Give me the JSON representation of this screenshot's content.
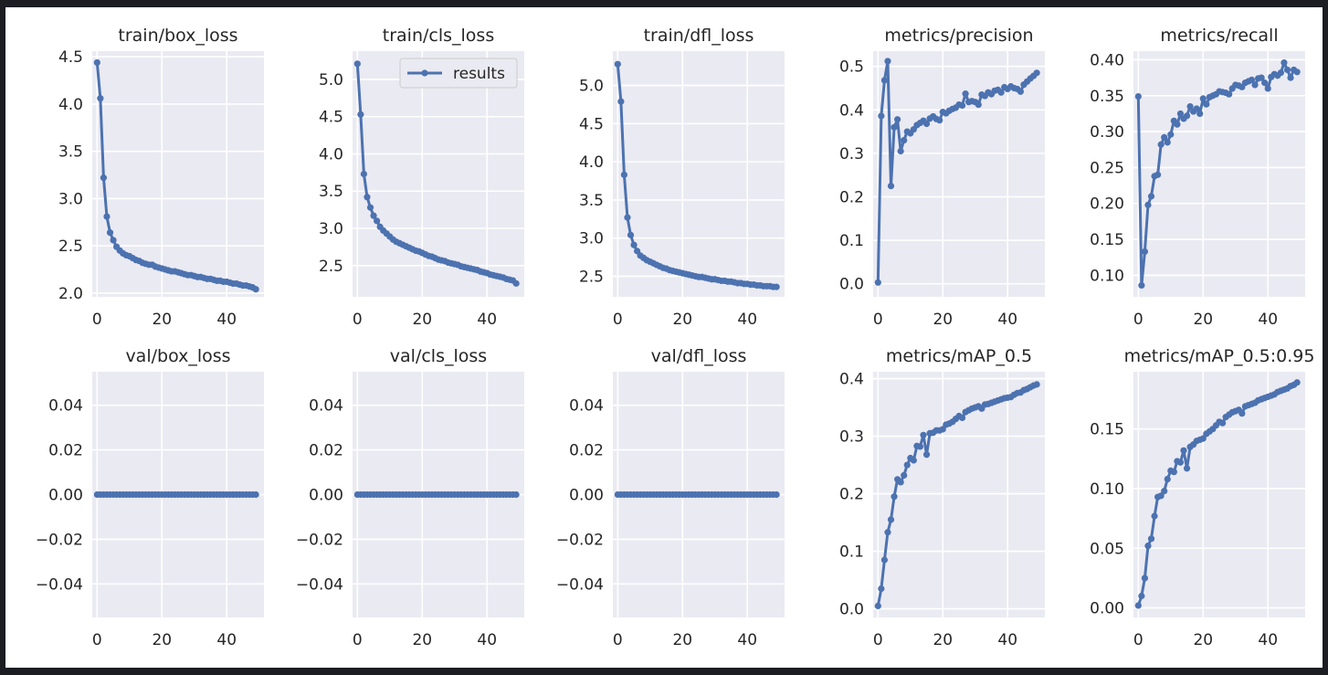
{
  "theme": {
    "background": "#eaeaf2",
    "grid": "#ffffff",
    "line": "#4c72b0",
    "text": "#262626"
  },
  "chart_data": [
    {
      "type": "line",
      "title": "train/box_loss",
      "xlim": [
        -1.5,
        51.5
      ],
      "ylim": [
        1.96,
        4.56
      ],
      "xticks": [
        0,
        20,
        40
      ],
      "yticks": [
        2.0,
        2.5,
        3.0,
        3.5,
        4.0,
        4.5
      ],
      "ydecimals": 1,
      "series": [
        {
          "name": "results",
          "values": [
            4.44,
            4.06,
            3.22,
            2.81,
            2.64,
            2.56,
            2.49,
            2.45,
            2.42,
            2.4,
            2.39,
            2.37,
            2.35,
            2.34,
            2.32,
            2.31,
            2.3,
            2.3,
            2.28,
            2.27,
            2.26,
            2.25,
            2.24,
            2.23,
            2.23,
            2.22,
            2.21,
            2.2,
            2.19,
            2.19,
            2.18,
            2.17,
            2.17,
            2.16,
            2.15,
            2.15,
            2.14,
            2.13,
            2.13,
            2.12,
            2.12,
            2.11,
            2.1,
            2.1,
            2.09,
            2.08,
            2.08,
            2.07,
            2.06,
            2.04
          ]
        }
      ]
    },
    {
      "type": "line",
      "title": "train/cls_loss",
      "xlim": [
        -1.5,
        51.5
      ],
      "ylim": [
        2.08,
        5.38
      ],
      "xticks": [
        0,
        20,
        40
      ],
      "yticks": [
        2.5,
        3.0,
        3.5,
        4.0,
        4.5,
        5.0
      ],
      "ydecimals": 1,
      "legend": {
        "label": "results",
        "placement": "upper right"
      },
      "series": [
        {
          "name": "results",
          "values": [
            5.21,
            4.53,
            3.73,
            3.42,
            3.28,
            3.17,
            3.1,
            3.02,
            2.97,
            2.93,
            2.89,
            2.85,
            2.82,
            2.8,
            2.78,
            2.76,
            2.74,
            2.72,
            2.7,
            2.69,
            2.67,
            2.65,
            2.63,
            2.62,
            2.6,
            2.58,
            2.57,
            2.56,
            2.54,
            2.53,
            2.52,
            2.51,
            2.49,
            2.48,
            2.47,
            2.46,
            2.45,
            2.44,
            2.42,
            2.41,
            2.4,
            2.38,
            2.37,
            2.36,
            2.35,
            2.34,
            2.32,
            2.31,
            2.3,
            2.26
          ]
        }
      ]
    },
    {
      "type": "line",
      "title": "train/dfl_loss",
      "xlim": [
        -1.5,
        51.5
      ],
      "ylim": [
        2.23,
        5.45
      ],
      "xticks": [
        0,
        20,
        40
      ],
      "yticks": [
        2.5,
        3.0,
        3.5,
        4.0,
        4.5,
        5.0
      ],
      "ydecimals": 1,
      "series": [
        {
          "name": "results",
          "values": [
            5.28,
            4.79,
            3.83,
            3.27,
            3.04,
            2.91,
            2.83,
            2.77,
            2.74,
            2.71,
            2.69,
            2.67,
            2.65,
            2.63,
            2.61,
            2.6,
            2.58,
            2.57,
            2.56,
            2.55,
            2.54,
            2.53,
            2.52,
            2.51,
            2.5,
            2.49,
            2.49,
            2.48,
            2.47,
            2.46,
            2.46,
            2.45,
            2.44,
            2.44,
            2.43,
            2.43,
            2.42,
            2.41,
            2.41,
            2.4,
            2.4,
            2.39,
            2.39,
            2.38,
            2.38,
            2.37,
            2.37,
            2.37,
            2.36,
            2.36
          ]
        }
      ]
    },
    {
      "type": "line",
      "title": "metrics/precision",
      "xlim": [
        -1.5,
        51.5
      ],
      "ylim": [
        -0.03,
        0.535
      ],
      "xticks": [
        0,
        20,
        40
      ],
      "yticks": [
        0.0,
        0.1,
        0.2,
        0.3,
        0.4,
        0.5
      ],
      "ydecimals": 1,
      "series": [
        {
          "name": "results",
          "values": [
            0.003,
            0.386,
            0.468,
            0.512,
            0.225,
            0.36,
            0.378,
            0.305,
            0.33,
            0.35,
            0.346,
            0.355,
            0.365,
            0.37,
            0.375,
            0.368,
            0.38,
            0.385,
            0.379,
            0.376,
            0.395,
            0.392,
            0.398,
            0.402,
            0.405,
            0.412,
            0.41,
            0.437,
            0.418,
            0.42,
            0.418,
            0.412,
            0.435,
            0.432,
            0.44,
            0.436,
            0.444,
            0.446,
            0.44,
            0.452,
            0.448,
            0.454,
            0.45,
            0.448,
            0.442,
            0.458,
            0.465,
            0.472,
            0.478,
            0.485
          ]
        }
      ]
    },
    {
      "type": "line",
      "title": "metrics/recall",
      "xlim": [
        -1.5,
        51.5
      ],
      "ylim": [
        0.07,
        0.412
      ],
      "xticks": [
        0,
        20,
        40
      ],
      "yticks": [
        0.1,
        0.15,
        0.2,
        0.25,
        0.3,
        0.35,
        0.4
      ],
      "ydecimals": 2,
      "series": [
        {
          "name": "results",
          "values": [
            0.349,
            0.086,
            0.133,
            0.198,
            0.21,
            0.238,
            0.24,
            0.282,
            0.292,
            0.285,
            0.296,
            0.315,
            0.31,
            0.325,
            0.318,
            0.322,
            0.335,
            0.328,
            0.332,
            0.325,
            0.346,
            0.338,
            0.348,
            0.35,
            0.352,
            0.356,
            0.355,
            0.354,
            0.352,
            0.36,
            0.365,
            0.364,
            0.362,
            0.368,
            0.37,
            0.372,
            0.365,
            0.374,
            0.375,
            0.368,
            0.36,
            0.376,
            0.38,
            0.378,
            0.382,
            0.396,
            0.386,
            0.375,
            0.386,
            0.383
          ]
        }
      ]
    },
    {
      "type": "line",
      "title": "val/box_loss",
      "xlim": [
        -1.5,
        51.5
      ],
      "ylim": [
        -0.055,
        0.055
      ],
      "xticks": [
        0,
        20,
        40
      ],
      "yticks": [
        -0.04,
        -0.02,
        0.0,
        0.02,
        0.04
      ],
      "ydecimals": 2,
      "series": [
        {
          "name": "results",
          "values": [
            0,
            0,
            0,
            0,
            0,
            0,
            0,
            0,
            0,
            0,
            0,
            0,
            0,
            0,
            0,
            0,
            0,
            0,
            0,
            0,
            0,
            0,
            0,
            0,
            0,
            0,
            0,
            0,
            0,
            0,
            0,
            0,
            0,
            0,
            0,
            0,
            0,
            0,
            0,
            0,
            0,
            0,
            0,
            0,
            0,
            0,
            0,
            0,
            0,
            0
          ]
        }
      ]
    },
    {
      "type": "line",
      "title": "val/cls_loss",
      "xlim": [
        -1.5,
        51.5
      ],
      "ylim": [
        -0.055,
        0.055
      ],
      "xticks": [
        0,
        20,
        40
      ],
      "yticks": [
        -0.04,
        -0.02,
        0.0,
        0.02,
        0.04
      ],
      "ydecimals": 2,
      "series": [
        {
          "name": "results",
          "values": [
            0,
            0,
            0,
            0,
            0,
            0,
            0,
            0,
            0,
            0,
            0,
            0,
            0,
            0,
            0,
            0,
            0,
            0,
            0,
            0,
            0,
            0,
            0,
            0,
            0,
            0,
            0,
            0,
            0,
            0,
            0,
            0,
            0,
            0,
            0,
            0,
            0,
            0,
            0,
            0,
            0,
            0,
            0,
            0,
            0,
            0,
            0,
            0,
            0,
            0
          ]
        }
      ]
    },
    {
      "type": "line",
      "title": "val/dfl_loss",
      "xlim": [
        -1.5,
        51.5
      ],
      "ylim": [
        -0.055,
        0.055
      ],
      "xticks": [
        0,
        20,
        40
      ],
      "yticks": [
        -0.04,
        -0.02,
        0.0,
        0.02,
        0.04
      ],
      "ydecimals": 2,
      "series": [
        {
          "name": "results",
          "values": [
            0,
            0,
            0,
            0,
            0,
            0,
            0,
            0,
            0,
            0,
            0,
            0,
            0,
            0,
            0,
            0,
            0,
            0,
            0,
            0,
            0,
            0,
            0,
            0,
            0,
            0,
            0,
            0,
            0,
            0,
            0,
            0,
            0,
            0,
            0,
            0,
            0,
            0,
            0,
            0,
            0,
            0,
            0,
            0,
            0,
            0,
            0,
            0,
            0,
            0
          ]
        }
      ]
    },
    {
      "type": "line",
      "title": "metrics/mAP_0.5",
      "xlim": [
        -1.5,
        51.5
      ],
      "ylim": [
        -0.015,
        0.412
      ],
      "xticks": [
        0,
        20,
        40
      ],
      "yticks": [
        0.0,
        0.1,
        0.2,
        0.3,
        0.4
      ],
      "ydecimals": 1,
      "series": [
        {
          "name": "results",
          "values": [
            0.005,
            0.035,
            0.085,
            0.133,
            0.155,
            0.195,
            0.225,
            0.22,
            0.232,
            0.25,
            0.262,
            0.258,
            0.283,
            0.282,
            0.302,
            0.268,
            0.305,
            0.306,
            0.31,
            0.31,
            0.312,
            0.32,
            0.322,
            0.325,
            0.33,
            0.335,
            0.332,
            0.342,
            0.345,
            0.348,
            0.35,
            0.352,
            0.348,
            0.355,
            0.356,
            0.358,
            0.36,
            0.362,
            0.364,
            0.366,
            0.367,
            0.368,
            0.372,
            0.375,
            0.376,
            0.38,
            0.382,
            0.385,
            0.388,
            0.39
          ]
        }
      ]
    },
    {
      "type": "line",
      "title": "metrics/mAP_0.5:0.95",
      "xlim": [
        -1.5,
        51.5
      ],
      "ylim": [
        -0.008,
        0.198
      ],
      "xticks": [
        0,
        20,
        40
      ],
      "yticks": [
        0.0,
        0.05,
        0.1,
        0.15
      ],
      "ydecimals": 2,
      "series": [
        {
          "name": "results",
          "values": [
            0.002,
            0.01,
            0.025,
            0.052,
            0.058,
            0.077,
            0.093,
            0.094,
            0.098,
            0.108,
            0.115,
            0.114,
            0.123,
            0.122,
            0.132,
            0.117,
            0.135,
            0.137,
            0.14,
            0.141,
            0.142,
            0.146,
            0.148,
            0.15,
            0.153,
            0.156,
            0.155,
            0.16,
            0.162,
            0.164,
            0.165,
            0.166,
            0.163,
            0.169,
            0.17,
            0.171,
            0.172,
            0.174,
            0.175,
            0.176,
            0.177,
            0.178,
            0.179,
            0.181,
            0.182,
            0.183,
            0.184,
            0.186,
            0.187,
            0.189
          ]
        }
      ]
    }
  ]
}
